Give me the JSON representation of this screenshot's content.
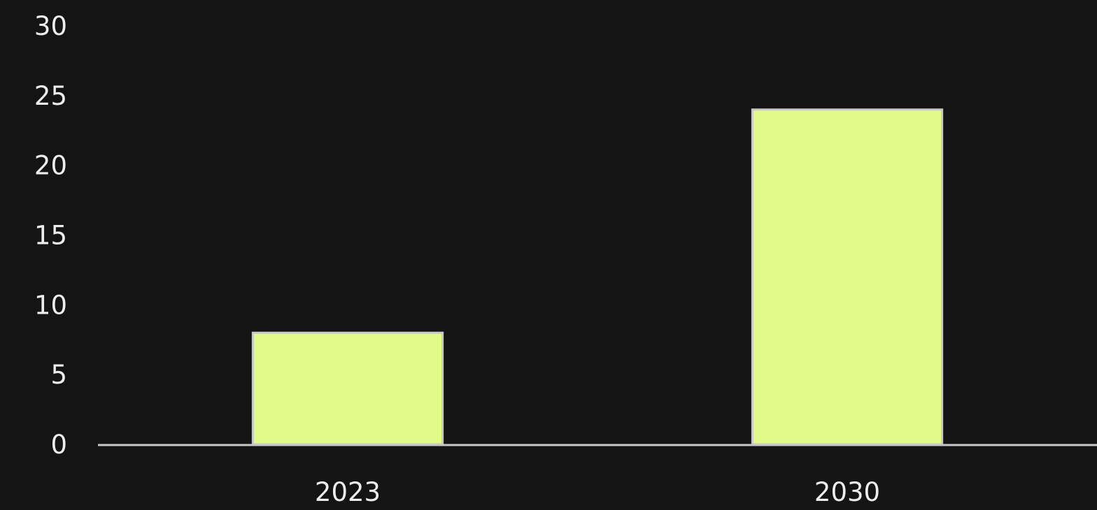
{
  "colors": {
    "background": "#141414",
    "bar_fill": "#e2fb88",
    "bar_outline": "#c8c8c8",
    "axis_line": "#c8c8c8",
    "text": "#ededed"
  },
  "chart_data": {
    "type": "bar",
    "categories": [
      "2023",
      "2030"
    ],
    "values": [
      8,
      24
    ],
    "title": "",
    "xlabel": "",
    "ylabel": "",
    "ylim": [
      0,
      30
    ],
    "yticks": [
      "0",
      "5",
      "10",
      "15",
      "20",
      "25",
      "30"
    ],
    "grid": false,
    "legend": "none"
  }
}
